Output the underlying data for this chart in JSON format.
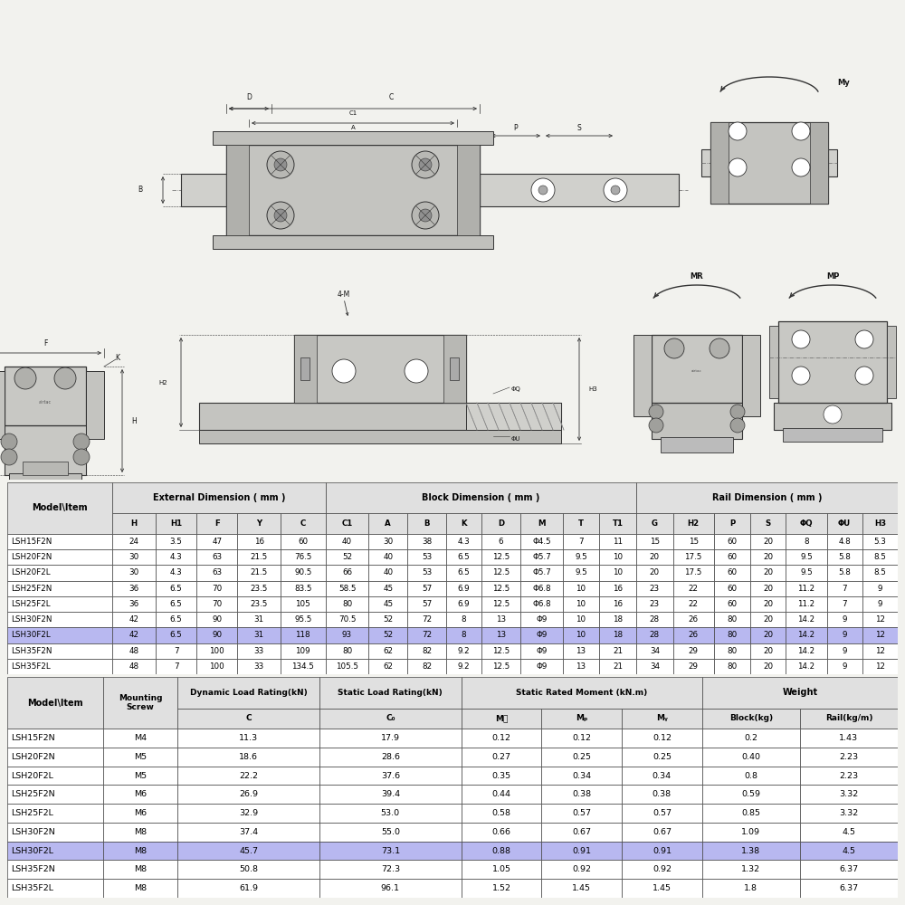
{
  "bg_color": "#f2f2ee",
  "table1_headers": [
    "Model\\Item",
    "H",
    "H1",
    "F",
    "Y",
    "C",
    "C1",
    "A",
    "B",
    "K",
    "D",
    "M",
    "T",
    "T1",
    "G",
    "H2",
    "P",
    "S",
    "ΦQ",
    "ΦU",
    "H3"
  ],
  "table1_rows": [
    [
      "LSH15F2N",
      "24",
      "3.5",
      "47",
      "16",
      "60",
      "40",
      "30",
      "38",
      "4.3",
      "6",
      "Φ4.5",
      "7",
      "11",
      "15",
      "15",
      "60",
      "20",
      "8",
      "4.8",
      "5.3"
    ],
    [
      "LSH20F2N",
      "30",
      "4.3",
      "63",
      "21.5",
      "76.5",
      "52",
      "40",
      "53",
      "6.5",
      "12.5",
      "Φ5.7",
      "9.5",
      "10",
      "20",
      "17.5",
      "60",
      "20",
      "9.5",
      "5.8",
      "8.5"
    ],
    [
      "LSH20F2L",
      "30",
      "4.3",
      "63",
      "21.5",
      "90.5",
      "66",
      "40",
      "53",
      "6.5",
      "12.5",
      "Φ5.7",
      "9.5",
      "10",
      "20",
      "17.5",
      "60",
      "20",
      "9.5",
      "5.8",
      "8.5"
    ],
    [
      "LSH25F2N",
      "36",
      "6.5",
      "70",
      "23.5",
      "83.5",
      "58.5",
      "45",
      "57",
      "6.9",
      "12.5",
      "Φ6.8",
      "10",
      "16",
      "23",
      "22",
      "60",
      "20",
      "11.2",
      "7",
      "9"
    ],
    [
      "LSH25F2L",
      "36",
      "6.5",
      "70",
      "23.5",
      "105",
      "80",
      "45",
      "57",
      "6.9",
      "12.5",
      "Φ6.8",
      "10",
      "16",
      "23",
      "22",
      "60",
      "20",
      "11.2",
      "7",
      "9"
    ],
    [
      "LSH30F2N",
      "42",
      "6.5",
      "90",
      "31",
      "95.5",
      "70.5",
      "52",
      "72",
      "8",
      "13",
      "Φ9",
      "10",
      "18",
      "28",
      "26",
      "80",
      "20",
      "14.2",
      "9",
      "12"
    ],
    [
      "LSH30F2L",
      "42",
      "6.5",
      "90",
      "31",
      "118",
      "93",
      "52",
      "72",
      "8",
      "13",
      "Φ9",
      "10",
      "18",
      "28",
      "26",
      "80",
      "20",
      "14.2",
      "9",
      "12"
    ],
    [
      "LSH35F2N",
      "48",
      "7",
      "100",
      "33",
      "109",
      "80",
      "62",
      "82",
      "9.2",
      "12.5",
      "Φ9",
      "13",
      "21",
      "34",
      "29",
      "80",
      "20",
      "14.2",
      "9",
      "12"
    ],
    [
      "LSH35F2L",
      "48",
      "7",
      "100",
      "33",
      "134.5",
      "105.5",
      "62",
      "82",
      "9.2",
      "12.5",
      "Φ9",
      "13",
      "21",
      "34",
      "29",
      "80",
      "20",
      "14.2",
      "9",
      "12"
    ]
  ],
  "table1_highlight_row": 6,
  "table2_rows": [
    [
      "LSH15F2N",
      "M4",
      "11.3",
      "17.9",
      "0.12",
      "0.12",
      "0.12",
      "0.2",
      "1.43"
    ],
    [
      "LSH20F2N",
      "M5",
      "18.6",
      "28.6",
      "0.27",
      "0.25",
      "0.25",
      "0.40",
      "2.23"
    ],
    [
      "LSH20F2L",
      "M5",
      "22.2",
      "37.6",
      "0.35",
      "0.34",
      "0.34",
      "0.8",
      "2.23"
    ],
    [
      "LSH25F2N",
      "M6",
      "26.9",
      "39.4",
      "0.44",
      "0.38",
      "0.38",
      "0.59",
      "3.32"
    ],
    [
      "LSH25F2L",
      "M6",
      "32.9",
      "53.0",
      "0.58",
      "0.57",
      "0.57",
      "0.85",
      "3.32"
    ],
    [
      "LSH30F2N",
      "M8",
      "37.4",
      "55.0",
      "0.66",
      "0.67",
      "0.67",
      "1.09",
      "4.5"
    ],
    [
      "LSH30F2L",
      "M8",
      "45.7",
      "73.1",
      "0.88",
      "0.91",
      "0.91",
      "1.38",
      "4.5"
    ],
    [
      "LSH35F2N",
      "M8",
      "50.8",
      "72.3",
      "1.05",
      "0.92",
      "0.92",
      "1.32",
      "6.37"
    ],
    [
      "LSH35F2L",
      "M8",
      "61.9",
      "96.1",
      "1.52",
      "1.45",
      "1.45",
      "1.8",
      "6.37"
    ]
  ],
  "table2_highlight_row": 6,
  "highlight_color": "#b8b8f0",
  "header_color": "#e0e0e0",
  "border_color": "#444444",
  "text_color": "#000000",
  "white": "#ffffff",
  "diag_color": "#c8c8c8",
  "diag_dark": "#888888",
  "diag_line": "#333333"
}
